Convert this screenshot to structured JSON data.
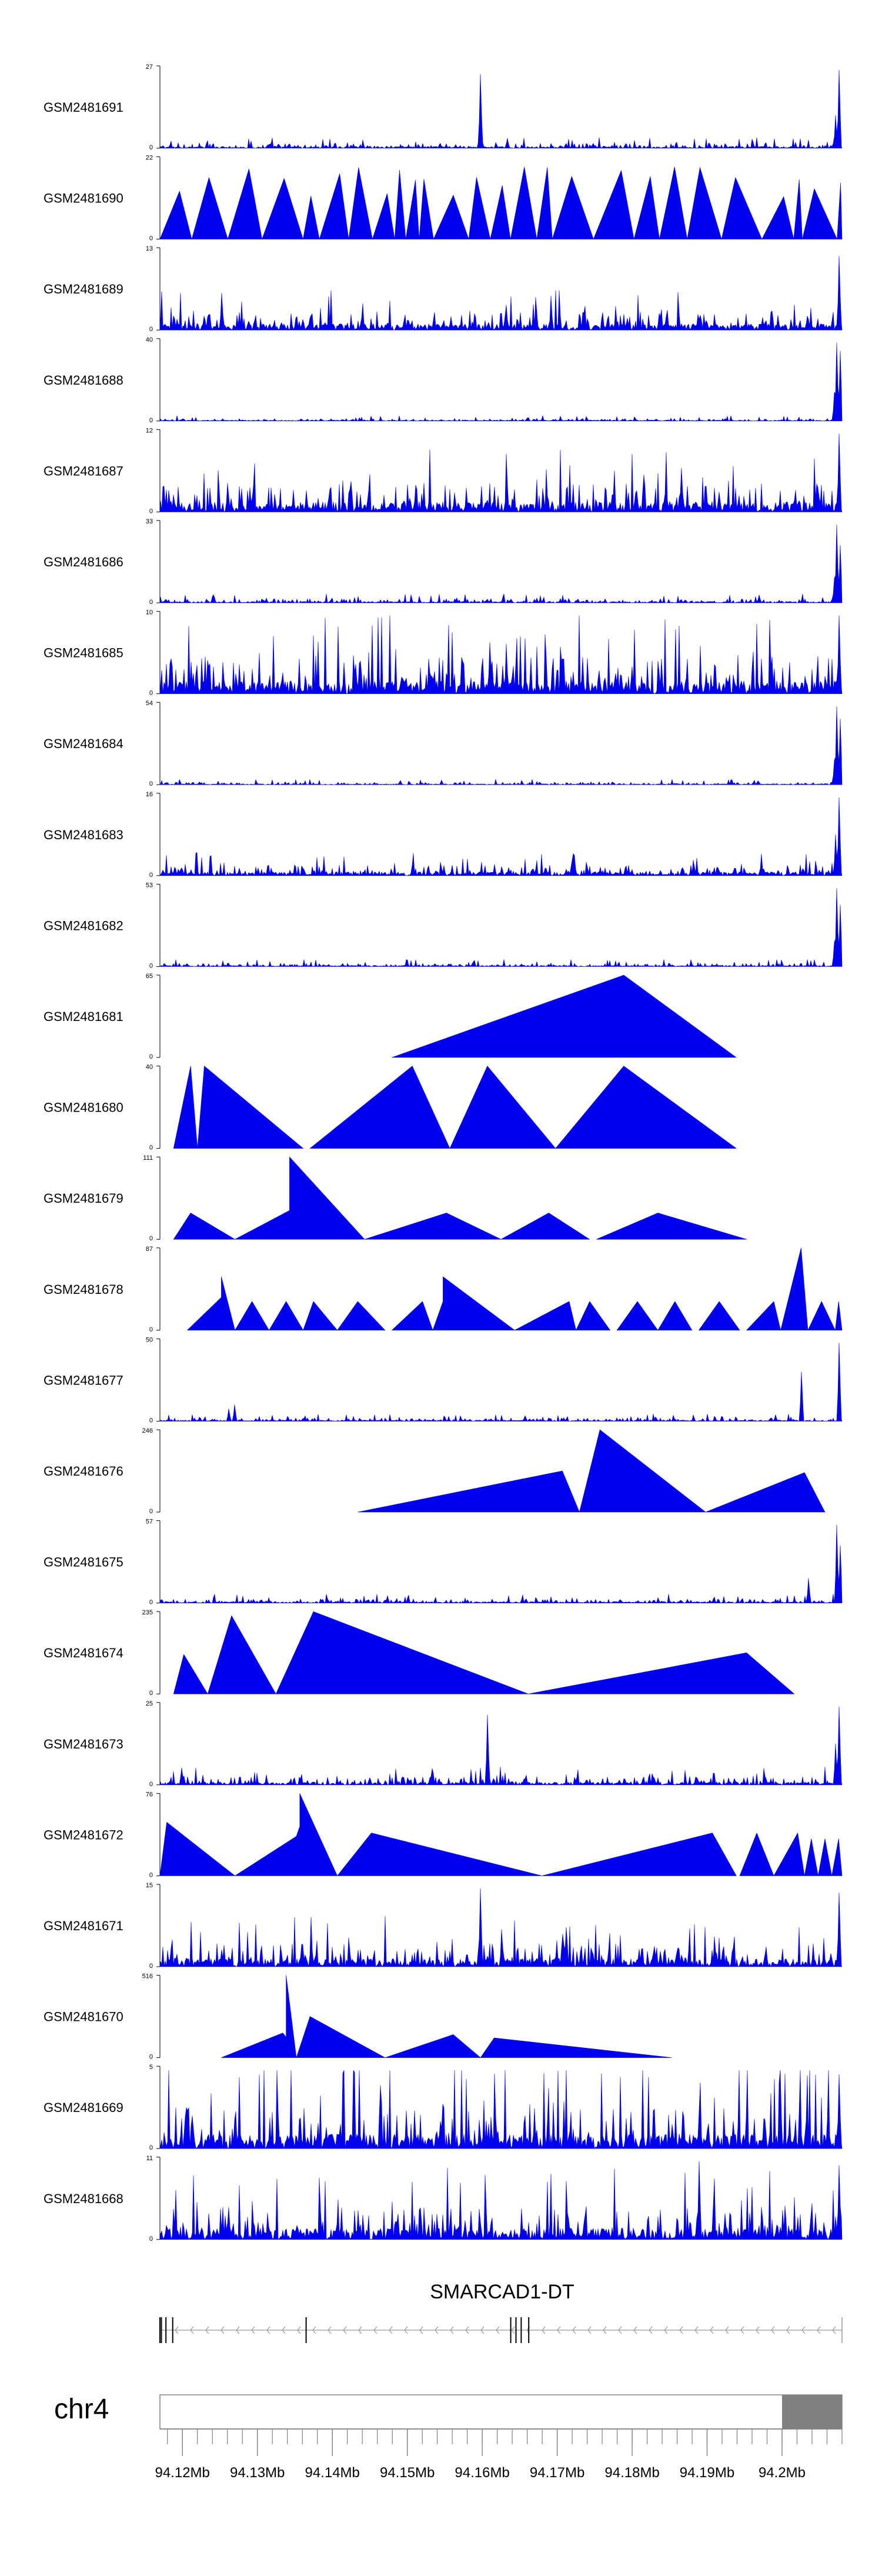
{
  "chart_data": {
    "type": "area",
    "chromosome": "chr4",
    "region": [
      94.117,
      94.208
    ],
    "fill_color": "#0000ee",
    "gene": {
      "name": "SMARCAD1-DT",
      "strand": "-",
      "start": 94.117,
      "end": 94.208,
      "exons": [
        94.117,
        94.1172,
        94.1178,
        94.1187,
        94.1365,
        94.1638,
        94.1645,
        94.1652,
        94.1662
      ]
    },
    "cytoband_highlight": [
      94.2,
      94.208
    ],
    "x_ticks": [
      {
        "value": 94.12,
        "label": "94.12Mb"
      },
      {
        "value": 94.13,
        "label": "94.13Mb"
      },
      {
        "value": 94.14,
        "label": "94.14Mb"
      },
      {
        "value": 94.15,
        "label": "94.15Mb"
      },
      {
        "value": 94.16,
        "label": "94.16Mb"
      },
      {
        "value": 94.17,
        "label": "94.17Mb"
      },
      {
        "value": 94.18,
        "label": "94.18Mb"
      },
      {
        "value": 94.19,
        "label": "94.19Mb"
      },
      {
        "value": 94.2,
        "label": "94.2Mb"
      }
    ],
    "tracks": [
      {
        "name": "GSM2481691",
        "ymax_label": "27",
        "ymin_label": "0",
        "ymax": 27,
        "pattern": "noise",
        "base": 0.06,
        "spikes": [
          [
            0.47,
            0.9
          ],
          [
            0.995,
            0.95
          ],
          [
            0.99,
            0.4
          ]
        ]
      },
      {
        "name": "GSM2481690",
        "ymax_label": "22",
        "ymin_label": "0",
        "ymax": 22,
        "pattern": "triangles",
        "count": 30,
        "hmin": 0.45,
        "hmax": 0.95
      },
      {
        "name": "GSM2481689",
        "ymax_label": "13",
        "ymin_label": "0",
        "ymax": 13,
        "pattern": "noise",
        "base": 0.22,
        "spikes": [
          [
            0.995,
            0.9
          ],
          [
            0.09,
            0.45
          ]
        ]
      },
      {
        "name": "GSM2481688",
        "ymax_label": "40",
        "ymin_label": "0",
        "ymax": 40,
        "pattern": "noise",
        "base": 0.03,
        "spikes": [
          [
            0.993,
            0.95
          ],
          [
            0.998,
            0.85
          ],
          [
            0.988,
            0.35
          ]
        ]
      },
      {
        "name": "GSM2481687",
        "ymax_label": "12",
        "ymin_label": "0",
        "ymax": 12,
        "pattern": "noise",
        "base": 0.35,
        "spikes": [
          [
            0.995,
            0.95
          ]
        ]
      },
      {
        "name": "GSM2481686",
        "ymax_label": "33",
        "ymin_label": "0",
        "ymax": 33,
        "pattern": "noise",
        "base": 0.05,
        "spikes": [
          [
            0.993,
            0.95
          ],
          [
            0.998,
            0.7
          ],
          [
            0.988,
            0.3
          ]
        ]
      },
      {
        "name": "GSM2481685",
        "ymax_label": "10",
        "ymin_label": "0",
        "ymax": 10,
        "pattern": "noise",
        "base": 0.45,
        "spikes": [
          [
            0.995,
            0.95
          ]
        ]
      },
      {
        "name": "GSM2481684",
        "ymax_label": "54",
        "ymin_label": "0",
        "ymax": 54,
        "pattern": "noise",
        "base": 0.03,
        "spikes": [
          [
            0.993,
            0.95
          ],
          [
            0.998,
            0.8
          ],
          [
            0.988,
            0.3
          ]
        ]
      },
      {
        "name": "GSM2481683",
        "ymax_label": "16",
        "ymin_label": "0",
        "ymax": 16,
        "pattern": "noise",
        "base": 0.13,
        "spikes": [
          [
            0.995,
            0.95
          ],
          [
            0.99,
            0.5
          ]
        ]
      },
      {
        "name": "GSM2481682",
        "ymax_label": "53",
        "ymin_label": "0",
        "ymax": 53,
        "pattern": "noise",
        "base": 0.04,
        "spikes": [
          [
            0.993,
            0.95
          ],
          [
            0.998,
            0.75
          ],
          [
            0.988,
            0.3
          ]
        ]
      },
      {
        "name": "GSM2481681",
        "ymax_label": "65",
        "ymin_label": "0",
        "ymax": 65,
        "pattern": "segments",
        "segments": [
          [
            0.34,
            0.68,
            0.845,
            0.0,
            1.0,
            0.0
          ]
        ]
      },
      {
        "name": "GSM2481680",
        "ymax_label": "40",
        "ymin_label": "0",
        "ymax": 40,
        "pattern": "segments",
        "segments": [
          [
            0.02,
            0.045,
            0.055,
            0.0,
            1.0,
            0.0
          ],
          [
            0.055,
            0.065,
            0.21,
            0.0,
            1.0,
            0.0
          ],
          [
            0.22,
            0.37,
            0.425,
            0.0,
            1.0,
            0.0
          ],
          [
            0.425,
            0.48,
            0.58,
            0.0,
            1.0,
            0.0
          ],
          [
            0.58,
            0.68,
            0.845,
            0.0,
            1.0,
            0.0
          ]
        ]
      },
      {
        "name": "GSM2481679",
        "ymax_label": "111",
        "ymin_label": "0",
        "ymax": 111,
        "pattern": "segments",
        "segments": [
          [
            0.02,
            0.045,
            0.11,
            0.0,
            0.32,
            0.0
          ],
          [
            0.11,
            0.19,
            0.19,
            0.0,
            0.35,
            0.35
          ],
          [
            0.19,
            0.19,
            0.3,
            0.35,
            1.0,
            0.0
          ],
          [
            0.3,
            0.42,
            0.5,
            0.0,
            0.32,
            0.0
          ],
          [
            0.5,
            0.57,
            0.63,
            0.0,
            0.32,
            0.0
          ],
          [
            0.64,
            0.73,
            0.86,
            0.0,
            0.32,
            0.0
          ]
        ]
      },
      {
        "name": "GSM2481678",
        "ymax_label": "87",
        "ymin_label": "0",
        "ymax": 87,
        "pattern": "segments",
        "segments": [
          [
            0.04,
            0.09,
            0.11,
            0.0,
            0.4,
            0.0
          ],
          [
            0.09,
            0.09,
            0.11,
            0.0,
            0.65,
            0.0
          ],
          [
            0.11,
            0.135,
            0.16,
            0.0,
            0.35,
            0.0
          ],
          [
            0.16,
            0.185,
            0.21,
            0.0,
            0.35,
            0.0
          ],
          [
            0.21,
            0.225,
            0.26,
            0.0,
            0.35,
            0.0
          ],
          [
            0.26,
            0.29,
            0.33,
            0.0,
            0.35,
            0.0
          ],
          [
            0.34,
            0.385,
            0.4,
            0.0,
            0.35,
            0.0
          ],
          [
            0.4,
            0.415,
            0.425,
            0.0,
            0.35,
            0.0
          ],
          [
            0.415,
            0.415,
            0.52,
            0.0,
            0.65,
            0.0
          ],
          [
            0.52,
            0.6,
            0.61,
            0.0,
            0.35,
            0.0
          ],
          [
            0.61,
            0.63,
            0.66,
            0.0,
            0.35,
            0.0
          ],
          [
            0.67,
            0.7,
            0.73,
            0.0,
            0.35,
            0.0
          ],
          [
            0.73,
            0.755,
            0.78,
            0.0,
            0.35,
            0.0
          ],
          [
            0.79,
            0.82,
            0.85,
            0.0,
            0.35,
            0.0
          ],
          [
            0.86,
            0.9,
            0.91,
            0.0,
            0.35,
            0.0
          ],
          [
            0.91,
            0.94,
            0.95,
            0.0,
            1.0,
            0.0
          ],
          [
            0.95,
            0.97,
            0.99,
            0.0,
            0.35,
            0.0
          ],
          [
            0.99,
            0.995,
            1.0,
            0.0,
            0.35,
            0.0
          ]
        ]
      },
      {
        "name": "GSM2481677",
        "ymax_label": "50",
        "ymin_label": "0",
        "ymax": 50,
        "pattern": "noise",
        "base": 0.04,
        "spikes": [
          [
            0.94,
            0.6
          ],
          [
            0.995,
            0.95
          ],
          [
            0.1,
            0.15
          ],
          [
            0.11,
            0.2
          ]
        ]
      },
      {
        "name": "GSM2481676",
        "ymax_label": "246",
        "ymin_label": "0",
        "ymax": 246,
        "pattern": "segments",
        "segments": [
          [
            0.29,
            0.59,
            0.615,
            0.0,
            0.5,
            0.0
          ],
          [
            0.615,
            0.645,
            0.8,
            0.0,
            1.0,
            0.0
          ],
          [
            0.8,
            0.945,
            0.975,
            0.0,
            0.48,
            0.0
          ]
        ]
      },
      {
        "name": "GSM2481675",
        "ymax_label": "57",
        "ymin_label": "0",
        "ymax": 57,
        "pattern": "noise",
        "base": 0.05,
        "spikes": [
          [
            0.993,
            0.95
          ],
          [
            0.998,
            0.7
          ],
          [
            0.95,
            0.3
          ]
        ]
      },
      {
        "name": "GSM2481674",
        "ymax_label": "235",
        "ymin_label": "0",
        "ymax": 235,
        "pattern": "segments",
        "segments": [
          [
            0.02,
            0.035,
            0.07,
            0.0,
            0.48,
            0.0
          ],
          [
            0.07,
            0.105,
            0.17,
            0.0,
            0.95,
            0.0
          ],
          [
            0.17,
            0.225,
            0.54,
            0.0,
            1.0,
            0.0
          ],
          [
            0.54,
            0.86,
            0.93,
            0.0,
            0.5,
            0.0
          ]
        ]
      },
      {
        "name": "GSM2481673",
        "ymax_label": "25",
        "ymin_label": "0",
        "ymax": 25,
        "pattern": "noise",
        "base": 0.1,
        "spikes": [
          [
            0.48,
            0.85
          ],
          [
            0.995,
            0.95
          ],
          [
            0.99,
            0.5
          ]
        ]
      },
      {
        "name": "GSM2481672",
        "ymax_label": "76",
        "ymin_label": "0",
        "ymax": 76,
        "pattern": "segments",
        "segments": [
          [
            0.0,
            0.01,
            0.11,
            0.0,
            0.65,
            0.0
          ],
          [
            0.11,
            0.2,
            0.205,
            0.0,
            0.48,
            0.6
          ],
          [
            0.205,
            0.205,
            0.26,
            0.6,
            1.0,
            0.0
          ],
          [
            0.26,
            0.31,
            0.56,
            0.0,
            0.52,
            0.0
          ],
          [
            0.56,
            0.81,
            0.845,
            0.0,
            0.52,
            0.0
          ],
          [
            0.85,
            0.875,
            0.9,
            0.0,
            0.52,
            0.0
          ],
          [
            0.9,
            0.935,
            0.945,
            0.0,
            0.52,
            0.0
          ],
          [
            0.945,
            0.955,
            0.965,
            0.0,
            0.45,
            0.0
          ],
          [
            0.965,
            0.975,
            0.985,
            0.0,
            0.45,
            0.0
          ],
          [
            0.985,
            0.995,
            1.0,
            0.0,
            0.45,
            0.0
          ]
        ]
      },
      {
        "name": "GSM2481671",
        "ymax_label": "15",
        "ymin_label": "0",
        "ymax": 15,
        "pattern": "noise",
        "base": 0.28,
        "spikes": [
          [
            0.47,
            0.95
          ],
          [
            0.995,
            0.9
          ]
        ]
      },
      {
        "name": "GSM2481670",
        "ymax_label": "516",
        "ymin_label": "0",
        "ymax": 516,
        "pattern": "segments",
        "segments": [
          [
            0.09,
            0.18,
            0.19,
            0.0,
            0.3,
            0.2
          ],
          [
            0.185,
            0.185,
            0.2,
            0.15,
            1.0,
            0.0
          ],
          [
            0.2,
            0.22,
            0.33,
            0.0,
            0.5,
            0.0
          ],
          [
            0.33,
            0.43,
            0.47,
            0.0,
            0.28,
            0.0
          ],
          [
            0.47,
            0.49,
            0.75,
            0.0,
            0.24,
            0.0
          ]
        ]
      },
      {
        "name": "GSM2481669",
        "ymax_label": "5",
        "ymin_label": "0",
        "ymax": 5,
        "pattern": "noise",
        "base": 0.5,
        "spikes": [
          [
            0.995,
            0.9
          ]
        ]
      },
      {
        "name": "GSM2481668",
        "ymax_label": "11",
        "ymin_label": "0",
        "ymax": 11,
        "pattern": "noise",
        "base": 0.4,
        "spikes": [
          [
            0.79,
            0.95
          ],
          [
            0.995,
            0.9
          ]
        ]
      }
    ]
  }
}
